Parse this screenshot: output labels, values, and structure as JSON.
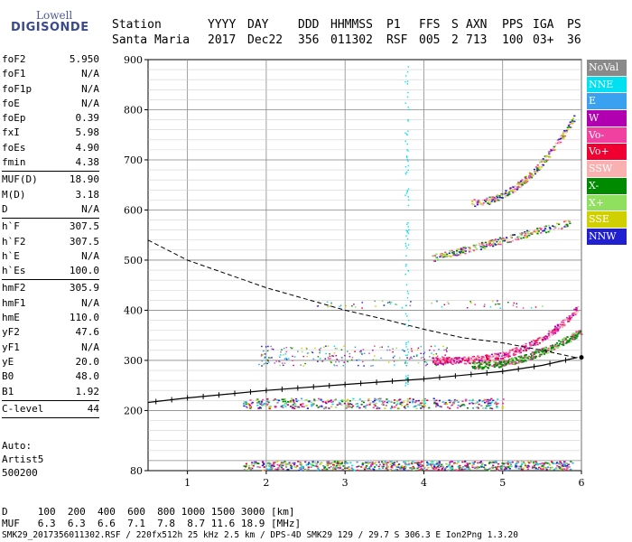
{
  "logo": {
    "line1": "Lowell",
    "line2": "DIGISONDE"
  },
  "header": {
    "labels": [
      "Station",
      "YYYY",
      "DAY",
      "DDD",
      "HHMMSS",
      "P1",
      "FFS",
      "S",
      "AXN",
      "PPS",
      "IGA",
      "PS"
    ],
    "values": [
      "Santa Maria",
      "2017",
      "Dec22",
      "356",
      "011302",
      "RSF",
      "005",
      "2",
      "713",
      "100",
      "03+",
      "36"
    ]
  },
  "params": [
    {
      "k": "foF2",
      "v": "5.950"
    },
    {
      "k": "foF1",
      "v": "N/A"
    },
    {
      "k": "foF1p",
      "v": "N/A"
    },
    {
      "k": "foE",
      "v": "N/A"
    },
    {
      "k": "foEp",
      "v": "0.39"
    },
    {
      "k": "fxI",
      "v": "5.98"
    },
    {
      "k": "foEs",
      "v": "4.90"
    },
    {
      "k": "fmin",
      "v": "4.38"
    },
    {
      "sep": true
    },
    {
      "k": "MUF(D)",
      "v": "18.90"
    },
    {
      "k": "M(D)",
      "v": "3.18"
    },
    {
      "k": "D",
      "v": "N/A"
    },
    {
      "sep": true
    },
    {
      "k": "h`F",
      "v": "307.5"
    },
    {
      "k": "h`F2",
      "v": "307.5"
    },
    {
      "k": "h`E",
      "v": "N/A"
    },
    {
      "k": "h`Es",
      "v": "100.0"
    },
    {
      "sep": true
    },
    {
      "k": "hmF2",
      "v": "305.9"
    },
    {
      "k": "hmF1",
      "v": "N/A"
    },
    {
      "k": "hmE",
      "v": "110.0"
    },
    {
      "k": "yF2",
      "v": "47.6"
    },
    {
      "k": "yF1",
      "v": "N/A"
    },
    {
      "k": "yE",
      "v": "20.0"
    },
    {
      "k": "B0",
      "v": "48.0"
    },
    {
      "k": "B1",
      "v": "1.92"
    },
    {
      "sep": true
    },
    {
      "k": "C-level",
      "v": "44"
    },
    {
      "sep": true
    }
  ],
  "auto": {
    "line1": "Auto:",
    "line2": "Artist5",
    "line3": "500200"
  },
  "legend": [
    {
      "name": "NoVal",
      "color": "#8a8a8a"
    },
    {
      "name": "NNE",
      "color": "#00e0f0"
    },
    {
      "name": "E",
      "color": "#3aa0f0"
    },
    {
      "name": "W",
      "color": "#b000b0"
    },
    {
      "name": "Vo-",
      "color": "#f040a0"
    },
    {
      "name": "Vo+",
      "color": "#f00030"
    },
    {
      "name": "SSW",
      "color": "#f8b0b0"
    },
    {
      "name": "X-",
      "color": "#008a00"
    },
    {
      "name": "X+",
      "color": "#90e060"
    },
    {
      "name": "SSE",
      "color": "#d0d000"
    },
    {
      "name": "NNW",
      "color": "#2020d0"
    }
  ],
  "footer": {
    "line1": "D     100  200  400  600  800 1000 1500 3000 [km]",
    "line2": "MUF   6.3  6.3  6.6  7.1  7.8  8.7 11.6 18.9 [MHz]",
    "line3": "SMK29_2017356011302.RSF / 220fx512h 25 kHz 2.5 km / DPS-4D SMK29 129 / 29.7 S 306.3 E Ion2Png 1.3.20"
  },
  "chart_data": {
    "type": "scatter",
    "xlim": [
      0.5,
      6
    ],
    "ylim": [
      80,
      900
    ],
    "x_ticks": [
      1,
      2,
      3,
      4,
      5,
      6
    ],
    "y_ticks": [
      80,
      200,
      300,
      400,
      500,
      600,
      700,
      800,
      900
    ],
    "grid": true,
    "legend_position": "right",
    "ionogram_traces": [
      {
        "name": "Es",
        "x_range": [
          1.7,
          5.9
        ],
        "h_range": [
          82,
          100
        ]
      },
      {
        "name": "Es 2nd hop",
        "x_range": [
          1.7,
          5.0
        ],
        "h_range": [
          205,
          225
        ]
      },
      {
        "name": "F2 O-mode",
        "x_range": [
          4.1,
          5.95
        ],
        "h_range": [
          295,
          420
        ]
      },
      {
        "name": "F2 X-mode",
        "x_range": [
          4.6,
          6.0
        ],
        "h_range": [
          285,
          370
        ]
      },
      {
        "name": "F2 2nd hop",
        "x_range": [
          4.1,
          5.85
        ],
        "h_range": [
          495,
          585
        ]
      },
      {
        "name": "F2 3rd hop",
        "x_range": [
          4.6,
          5.9
        ],
        "h_range": [
          610,
          790
        ]
      }
    ],
    "profile_curve": {
      "x": [
        0.5,
        1.0,
        2.0,
        3.0,
        4.0,
        5.0,
        5.5,
        5.95
      ],
      "h": [
        216,
        225,
        240,
        252,
        263,
        278,
        290,
        305.9
      ]
    },
    "muf_curve": {
      "x": [
        0.5,
        1.0,
        2.0,
        3.0,
        3.5,
        4.0,
        4.5,
        5.0,
        5.5,
        5.95
      ],
      "h": [
        540,
        500,
        445,
        400,
        382,
        362,
        345,
        335,
        320,
        305
      ]
    }
  }
}
